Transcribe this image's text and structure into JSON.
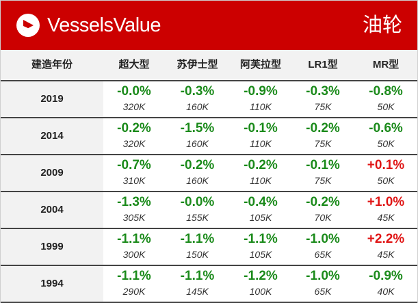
{
  "banner": {
    "brand": "VesselsValue",
    "category": "油轮",
    "brand_color": "#cc0000"
  },
  "table": {
    "year_header": "建造年份",
    "columns": [
      "超大型",
      "苏伊士型",
      "阿芙拉型",
      "LR1型",
      "MR型"
    ],
    "rows": [
      {
        "year": "2019",
        "cells": [
          {
            "change": "-0.0%",
            "price": "320K",
            "trend": "down"
          },
          {
            "change": "-0.3%",
            "price": "160K",
            "trend": "down"
          },
          {
            "change": "-0.9%",
            "price": "110K",
            "trend": "down"
          },
          {
            "change": "-0.3%",
            "price": "75K",
            "trend": "down"
          },
          {
            "change": "-0.8%",
            "price": "50K",
            "trend": "down"
          }
        ]
      },
      {
        "year": "2014",
        "cells": [
          {
            "change": "-0.2%",
            "price": "320K",
            "trend": "down"
          },
          {
            "change": "-1.5%",
            "price": "160K",
            "trend": "down"
          },
          {
            "change": "-0.1%",
            "price": "110K",
            "trend": "down"
          },
          {
            "change": "-0.2%",
            "price": "75K",
            "trend": "down"
          },
          {
            "change": "-0.6%",
            "price": "50K",
            "trend": "down"
          }
        ]
      },
      {
        "year": "2009",
        "cells": [
          {
            "change": "-0.7%",
            "price": "310K",
            "trend": "down"
          },
          {
            "change": "-0.2%",
            "price": "160K",
            "trend": "down"
          },
          {
            "change": "-0.2%",
            "price": "110K",
            "trend": "down"
          },
          {
            "change": "-0.1%",
            "price": "75K",
            "trend": "down"
          },
          {
            "change": "+0.1%",
            "price": "50K",
            "trend": "up"
          }
        ]
      },
      {
        "year": "2004",
        "cells": [
          {
            "change": "-1.3%",
            "price": "305K",
            "trend": "down"
          },
          {
            "change": "-0.0%",
            "price": "155K",
            "trend": "down"
          },
          {
            "change": "-0.4%",
            "price": "105K",
            "trend": "down"
          },
          {
            "change": "-0.2%",
            "price": "70K",
            "trend": "down"
          },
          {
            "change": "+1.0%",
            "price": "45K",
            "trend": "up"
          }
        ]
      },
      {
        "year": "1999",
        "cells": [
          {
            "change": "-1.1%",
            "price": "300K",
            "trend": "down"
          },
          {
            "change": "-1.1%",
            "price": "150K",
            "trend": "down"
          },
          {
            "change": "-1.1%",
            "price": "105K",
            "trend": "down"
          },
          {
            "change": "-1.0%",
            "price": "65K",
            "trend": "down"
          },
          {
            "change": "+2.2%",
            "price": "45K",
            "trend": "up"
          }
        ]
      },
      {
        "year": "1994",
        "cells": [
          {
            "change": "-1.1%",
            "price": "290K",
            "trend": "down"
          },
          {
            "change": "-1.1%",
            "price": "145K",
            "trend": "down"
          },
          {
            "change": "-1.2%",
            "price": "100K",
            "trend": "down"
          },
          {
            "change": "-1.0%",
            "price": "65K",
            "trend": "down"
          },
          {
            "change": "-0.9%",
            "price": "40K",
            "trend": "down"
          }
        ]
      }
    ],
    "colors": {
      "down": "#1a8a1a",
      "up": "#e01515"
    }
  }
}
